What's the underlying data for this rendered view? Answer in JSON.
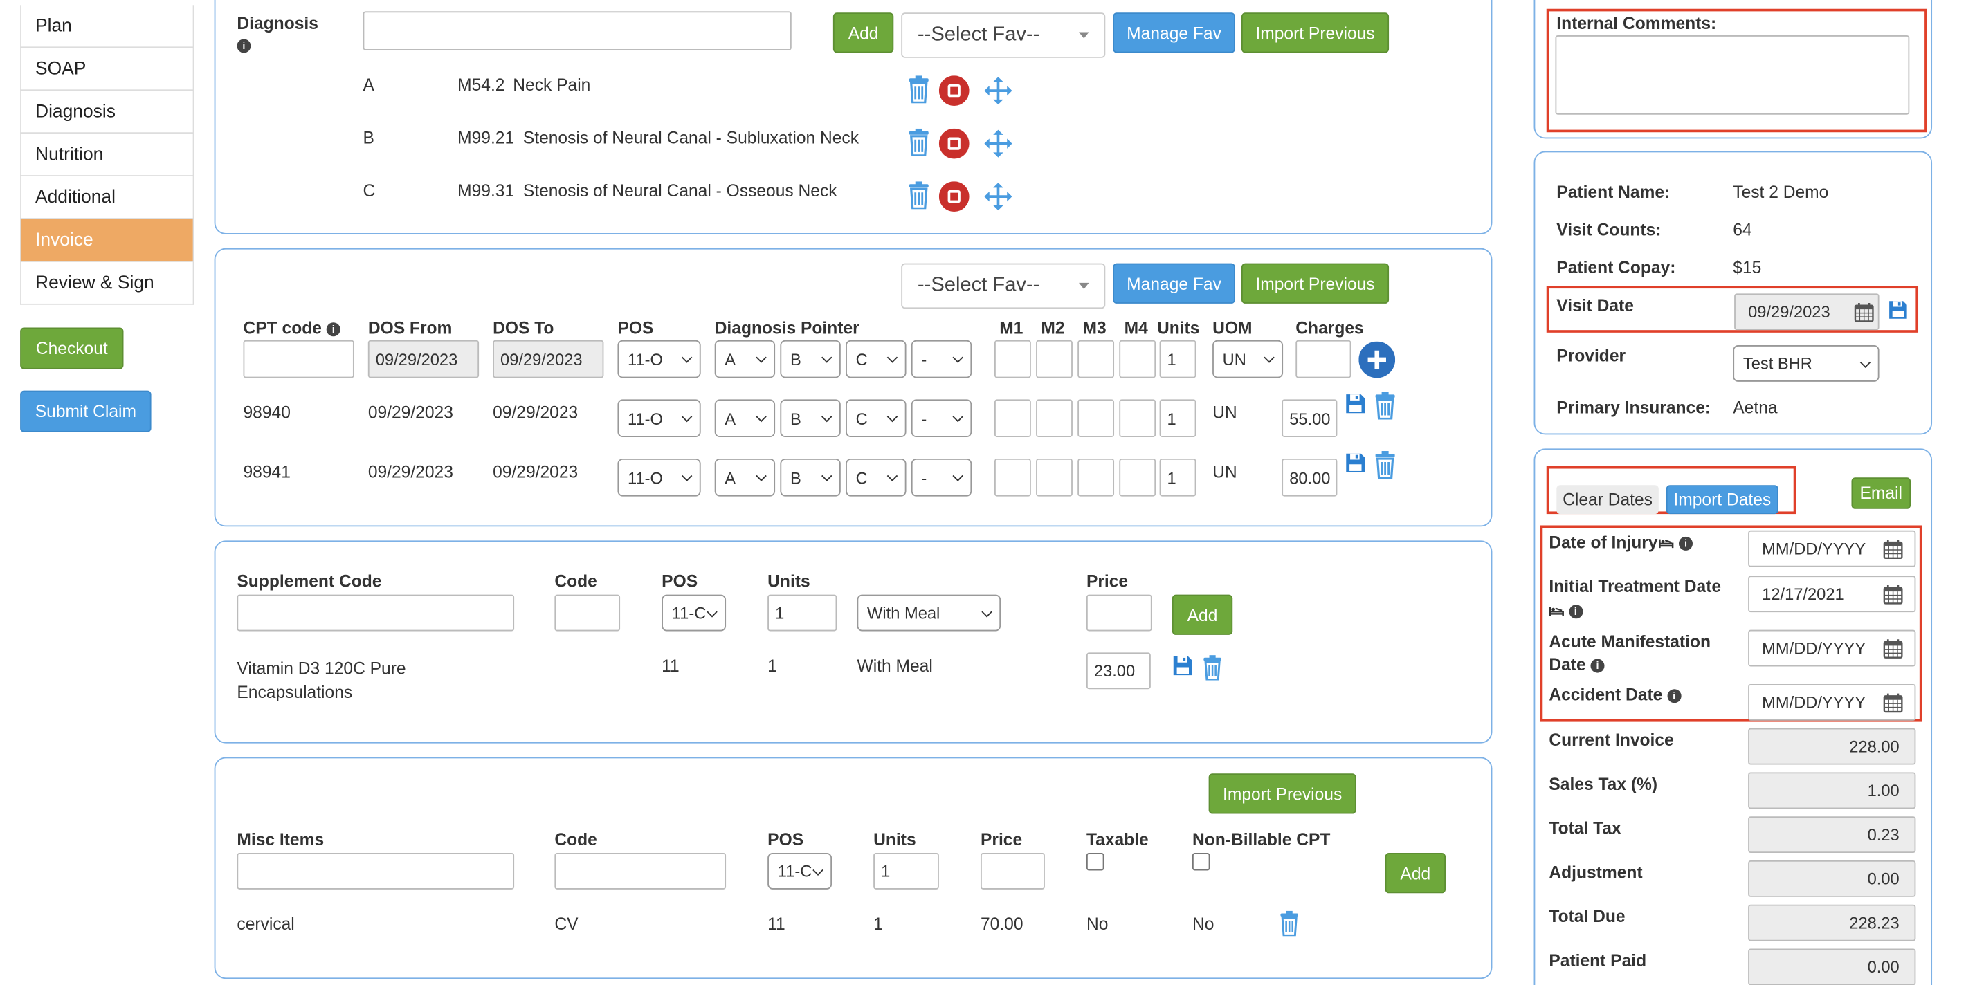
{
  "nav": [
    "Plan",
    "SOAP",
    "Diagnosis",
    "Nutrition",
    "Additional",
    "Invoice",
    "Review & Sign"
  ],
  "buttons": {
    "checkout": "Checkout",
    "submit_claim": "Submit Claim",
    "add": "Add",
    "manage_fav": "Manage Fav",
    "import_previous": "Import Previous",
    "select_fav": "--Select Fav--",
    "clear_dates": "Clear Dates",
    "import_dates": "Import Dates",
    "email": "Email"
  },
  "diagnosis": {
    "label": "Diagnosis",
    "input_value": "",
    "rows": [
      {
        "letter": "A",
        "code": "M54.2",
        "desc": "Neck Pain"
      },
      {
        "letter": "B",
        "code": "M99.21",
        "desc": "Stenosis of Neural Canal - Subluxation Neck"
      },
      {
        "letter": "C",
        "code": "M99.31",
        "desc": "Stenosis of Neural Canal - Osseous Neck"
      }
    ]
  },
  "cpt": {
    "headers": {
      "cpt_code": "CPT code",
      "dos_from": "DOS From",
      "dos_to": "DOS To",
      "pos": "POS",
      "diagnosis_pointer": "Diagnosis Pointer",
      "m1": "M1",
      "m2": "M2",
      "m3": "M3",
      "m4": "M4",
      "units": "Units",
      "uom": "UOM",
      "charges": "Charges"
    },
    "new_row": {
      "dos_from": "09/29/2023",
      "dos_to": "09/29/2023",
      "pos": "11-O",
      "p1": "A",
      "p2": "B",
      "p3": "C",
      "p4": "-",
      "units": "1",
      "uom": "UN"
    },
    "rows": [
      {
        "code": "98940",
        "dos_from": "09/29/2023",
        "dos_to": "09/29/2023",
        "pos": "11-O",
        "p1": "A",
        "p2": "B",
        "p3": "C",
        "p4": "-",
        "units": "1",
        "uom": "UN",
        "charge": "55.00"
      },
      {
        "code": "98941",
        "dos_from": "09/29/2023",
        "dos_to": "09/29/2023",
        "pos": "11-O",
        "p1": "A",
        "p2": "B",
        "p3": "C",
        "p4": "-",
        "units": "1",
        "uom": "UN",
        "charge": "80.00"
      }
    ]
  },
  "supplement": {
    "headers": {
      "code_label": "Supplement Code",
      "code": "Code",
      "pos": "POS",
      "units": "Units",
      "price": "Price"
    },
    "new_row": {
      "pos": "11-C",
      "units": "1",
      "meal": "With Meal"
    },
    "rows": [
      {
        "name": "Vitamin D3 120C Pure Encapsulations",
        "pos": "11",
        "units": "1",
        "meal": "With Meal",
        "price": "23.00"
      }
    ]
  },
  "misc": {
    "headers": {
      "misc_items": "Misc Items",
      "code": "Code",
      "pos": "POS",
      "units": "Units",
      "price": "Price",
      "taxable": "Taxable",
      "non_billable": "Non-Billable CPT"
    },
    "new_row": {
      "pos": "11-C",
      "units": "1"
    },
    "rows": [
      {
        "item": "cervical",
        "code": "CV",
        "pos": "11",
        "units": "1",
        "price": "70.00",
        "taxable": "No",
        "non_billable": "No"
      }
    ]
  },
  "comments": {
    "label": "Internal Comments:",
    "value": ""
  },
  "patient": {
    "name_label": "Patient Name:",
    "name": "Test 2 Demo",
    "visits_label": "Visit Counts:",
    "visits": "64",
    "copay_label": "Patient Copay:",
    "copay": "$15",
    "visit_date_label": "Visit Date",
    "visit_date": "09/29/2023",
    "provider_label": "Provider",
    "provider": "Test BHR",
    "insurance_label": "Primary Insurance:",
    "insurance": "Aetna"
  },
  "dates": {
    "injury_label": "Date of Injury",
    "injury": "MM/DD/YYYY",
    "initial_label": "Initial Treatment Date",
    "initial": "12/17/2021",
    "acute_label_1": "Acute Manifestation",
    "acute_label_2": "Date",
    "acute": "MM/DD/YYYY",
    "accident_label": "Accident Date",
    "accident": "MM/DD/YYYY"
  },
  "totals": {
    "current_invoice_label": "Current Invoice",
    "current_invoice": "228.00",
    "sales_tax_label": "Sales Tax (%)",
    "sales_tax": "1.00",
    "total_tax_label": "Total Tax",
    "total_tax": "0.23",
    "adjustment_label": "Adjustment",
    "adjustment": "0.00",
    "total_due_label": "Total Due",
    "total_due": "228.23",
    "patient_paid_label": "Patient Paid",
    "patient_paid": "0.00"
  },
  "colors": {
    "accent_green": "#6ea83b",
    "accent_blue": "#4a9ce0",
    "active_nav": "#eea964",
    "highlight_red": "#e0402a",
    "card_border": "#7db1e6"
  }
}
